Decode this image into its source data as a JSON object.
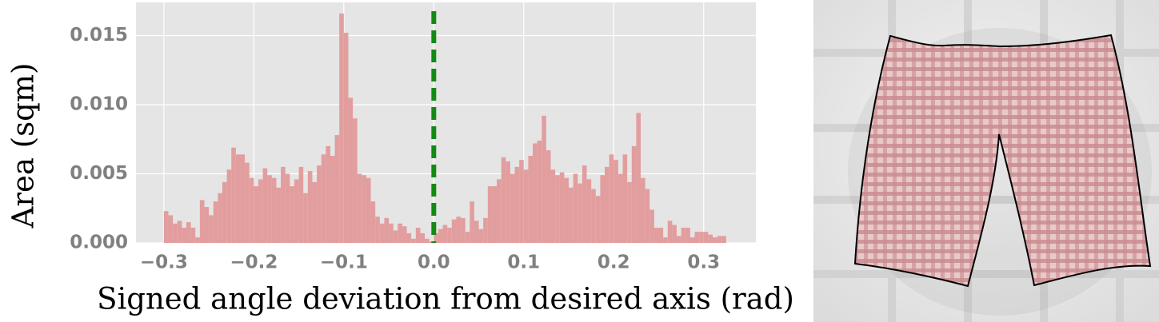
{
  "chart_data": {
    "type": "histogram",
    "xlabel": "Signed angle deviation from desired axis (rad)",
    "ylabel": "Area (sqm)",
    "color": "#e29e9e",
    "grid": true,
    "xlim": [
      -0.331,
      0.358
    ],
    "ylim": [
      0,
      0.0174
    ],
    "xticks": [
      {
        "value": -0.3,
        "label": "−0.3"
      },
      {
        "value": -0.2,
        "label": "−0.2"
      },
      {
        "value": -0.1,
        "label": "−0.1"
      },
      {
        "value": 0,
        "label": "0.0"
      },
      0.1,
      0.2,
      0.3
    ],
    "yticks": [
      {
        "value": 0,
        "label": "0.000"
      },
      {
        "value": 0.005,
        "label": "0.005"
      },
      {
        "value": 0.01,
        "label": "0.010"
      },
      {
        "value": 0.015,
        "label": "0.015"
      }
    ],
    "vline": {
      "x": 0,
      "color": "#138a13"
    },
    "bins": [
      -0.3,
      -0.295,
      -0.29,
      -0.285,
      -0.28,
      -0.275,
      -0.27,
      -0.265,
      -0.26,
      -0.255,
      -0.25,
      -0.245,
      -0.24,
      -0.235,
      -0.23,
      -0.225,
      -0.22,
      -0.215,
      -0.21,
      -0.205,
      -0.2,
      -0.195,
      -0.19,
      -0.185,
      -0.18,
      -0.175,
      -0.17,
      -0.165,
      -0.16,
      -0.155,
      -0.15,
      -0.145,
      -0.14,
      -0.135,
      -0.13,
      -0.125,
      -0.12,
      -0.115,
      -0.11,
      -0.105,
      -0.1,
      -0.095,
      -0.09,
      -0.085,
      -0.08,
      -0.075,
      -0.07,
      -0.065,
      -0.06,
      -0.055,
      -0.05,
      -0.045,
      -0.04,
      -0.035,
      -0.03,
      -0.025,
      -0.02,
      -0.015,
      -0.01,
      -0.005,
      0,
      0.005,
      0.01,
      0.015,
      0.02,
      0.025,
      0.03,
      0.035,
      0.04,
      0.045,
      0.05,
      0.055,
      0.06,
      0.065,
      0.07,
      0.075,
      0.08,
      0.085,
      0.09,
      0.095,
      0.1,
      0.105,
      0.11,
      0.115,
      0.12,
      0.125,
      0.13,
      0.135,
      0.14,
      0.145,
      0.15,
      0.155,
      0.16,
      0.165,
      0.17,
      0.175,
      0.18,
      0.185,
      0.19,
      0.195,
      0.2,
      0.205,
      0.21,
      0.215,
      0.22,
      0.225,
      0.23,
      0.235,
      0.24,
      0.245,
      0.25,
      0.255,
      0.26,
      0.265,
      0.27,
      0.275,
      0.28,
      0.285,
      0.29,
      0.295,
      0.3,
      0.305,
      0.31,
      0.315,
      0.32,
      0.325
    ],
    "values": [
      0.0023,
      0.002,
      0.0014,
      0.0016,
      0.0011,
      0.0015,
      0.0011,
      0.0004,
      0.0031,
      0.0026,
      0.002,
      0.003,
      0.0036,
      0.0044,
      0.0053,
      0.0069,
      0.0064,
      0.0064,
      0.0058,
      0.0047,
      0.0041,
      0.0046,
      0.0054,
      0.0049,
      0.0047,
      0.004,
      0.0055,
      0.005,
      0.0041,
      0.0046,
      0.0055,
      0.0036,
      0.0052,
      0.0044,
      0.0056,
      0.0064,
      0.007,
      0.0063,
      0.0078,
      0.0166,
      0.0152,
      0.0105,
      0.009,
      0.005,
      0.0049,
      0.0047,
      0.003,
      0.0019,
      0.0014,
      0.0018,
      0.0014,
      0.0009,
      0.0014,
      0.0012,
      0.0007,
      0.0003,
      0.0011,
      0.0007,
      0.0003,
      0.0001,
      0.0007,
      0.001,
      0.0013,
      0.0011,
      0.0017,
      0.0019,
      0.0018,
      0.0008,
      0.003,
      0.0016,
      0.001,
      0.0018,
      0.0041,
      0.0041,
      0.0046,
      0.0062,
      0.0059,
      0.005,
      0.0055,
      0.006,
      0.0053,
      0.0063,
      0.0072,
      0.0074,
      0.0092,
      0.0067,
      0.0053,
      0.0049,
      0.0051,
      0.0047,
      0.004,
      0.005,
      0.0043,
      0.0056,
      0.0046,
      0.0039,
      0.0034,
      0.0049,
      0.0055,
      0.0064,
      0.006,
      0.005,
      0.0064,
      0.0044,
      0.007,
      0.0094,
      0.0047,
      0.0039,
      0.0024,
      0.0011,
      0.0011,
      0.0004,
      0.0016,
      0.0013,
      0.0005,
      0.0011,
      0.0011,
      0.0004,
      0.0008,
      0.0008,
      0.0008,
      0.0006,
      0.0004,
      0.0005,
      0.0005
    ]
  }
}
